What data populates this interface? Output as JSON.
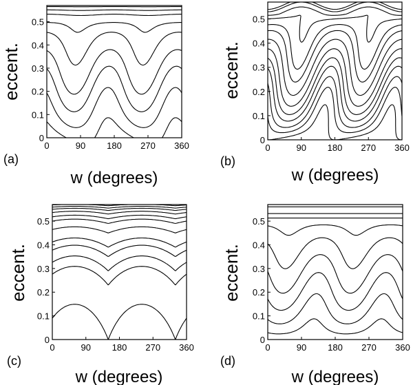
{
  "chart_data": [
    {
      "type": "line",
      "panel_label": "(a)",
      "xlabel": "w (degrees)",
      "ylabel": "eccent.",
      "xlim": [
        0,
        360
      ],
      "ylim": [
        0,
        0.57
      ],
      "xticks": [
        "0",
        "90",
        "180",
        "270",
        "360"
      ],
      "yticks": [
        "0",
        "0.1",
        "0.2",
        "0.3",
        "0.4",
        "0.5"
      ],
      "contour_levels": [
        0.01,
        0.1,
        0.2,
        0.3,
        0.42,
        0.49,
        0.53,
        0.55,
        0.565
      ],
      "variation": "two_lobes_tilted"
    },
    {
      "type": "line",
      "panel_label": "(b)",
      "xlabel": "w (degrees)",
      "ylabel": "eccent.",
      "xlim": [
        0,
        360
      ],
      "ylim": [
        0,
        0.57
      ],
      "xticks": [
        "0",
        "90",
        "180",
        "270",
        "360"
      ],
      "yticks": [
        "0",
        "0.1",
        "0.2",
        "0.3",
        "0.4",
        "0.5"
      ],
      "contour_levels": [
        0.02,
        0.06,
        0.1,
        0.15,
        0.2,
        0.26,
        0.33,
        0.4,
        0.45,
        0.5,
        0.53,
        0.55,
        0.56
      ],
      "variation": "strong_tilted_islands"
    },
    {
      "type": "line",
      "panel_label": "(c)",
      "xlabel": "w (degrees)",
      "ylabel": "eccent.",
      "xlim": [
        0,
        360
      ],
      "ylim": [
        0,
        0.57
      ],
      "xticks": [
        "0",
        "90",
        "180",
        "270",
        "360"
      ],
      "yticks": [
        "0",
        "0.1",
        "0.2",
        "0.3",
        "0.4",
        "0.5"
      ],
      "contour_levels": [
        0.0,
        0.23,
        0.29,
        0.35,
        0.39,
        0.45,
        0.49,
        0.51,
        0.53,
        0.545,
        0.555,
        0.565
      ],
      "variation": "cusps_at_150_330"
    },
    {
      "type": "line",
      "panel_label": "(d)",
      "xlabel": "w (degrees)",
      "ylabel": "eccent.",
      "xlim": [
        0,
        360
      ],
      "ylim": [
        0,
        0.57
      ],
      "xticks": [
        "0",
        "90",
        "180",
        "270",
        "360"
      ],
      "yticks": [
        "0",
        "0.1",
        "0.2",
        "0.3",
        "0.4",
        "0.5"
      ],
      "contour_levels": [
        0.01,
        0.08,
        0.17,
        0.27,
        0.38,
        0.47,
        0.51,
        0.53,
        0.56
      ],
      "variation": "two_lobes_tilted_d"
    }
  ]
}
